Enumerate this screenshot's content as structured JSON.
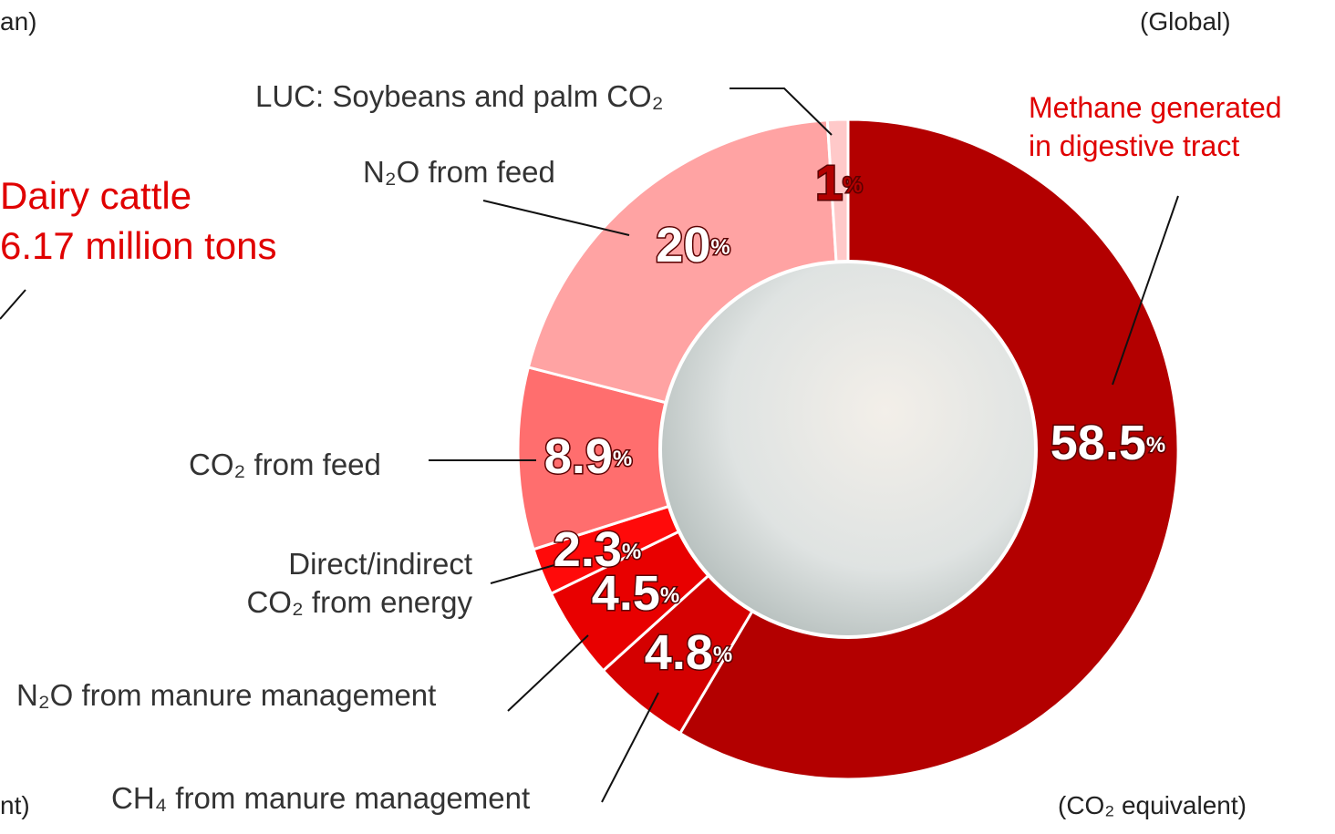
{
  "header": {
    "left_partial": "an)",
    "right": "(Global)"
  },
  "callout": {
    "title": "Dairy cattle",
    "amount": "6.17 million tons"
  },
  "footer": {
    "left_partial": "nt)",
    "right": "(CO₂ equivalent)"
  },
  "chart_data": {
    "type": "donut",
    "categories": [
      "Methane generated\nin digestive tract",
      "CH₄ from manure management",
      "N₂O from manure management",
      "Direct/indirect\nCO₂ from energy",
      "CO₂ from feed",
      "N₂O from feed",
      "LUC: Soybeans and palm CO₂"
    ],
    "values": [
      58.5,
      4.8,
      4.5,
      2.3,
      8.9,
      20,
      1
    ],
    "value_labels": [
      "58.5%",
      "4.8%",
      "4.5%",
      "2.3%",
      "8.9%",
      "20%",
      "1%"
    ],
    "colors": [
      "#b30000",
      "#d40000",
      "#e80000",
      "#ff0a0a",
      "#ff6e6e",
      "#ffa3a3",
      "#ffc9c9"
    ]
  }
}
